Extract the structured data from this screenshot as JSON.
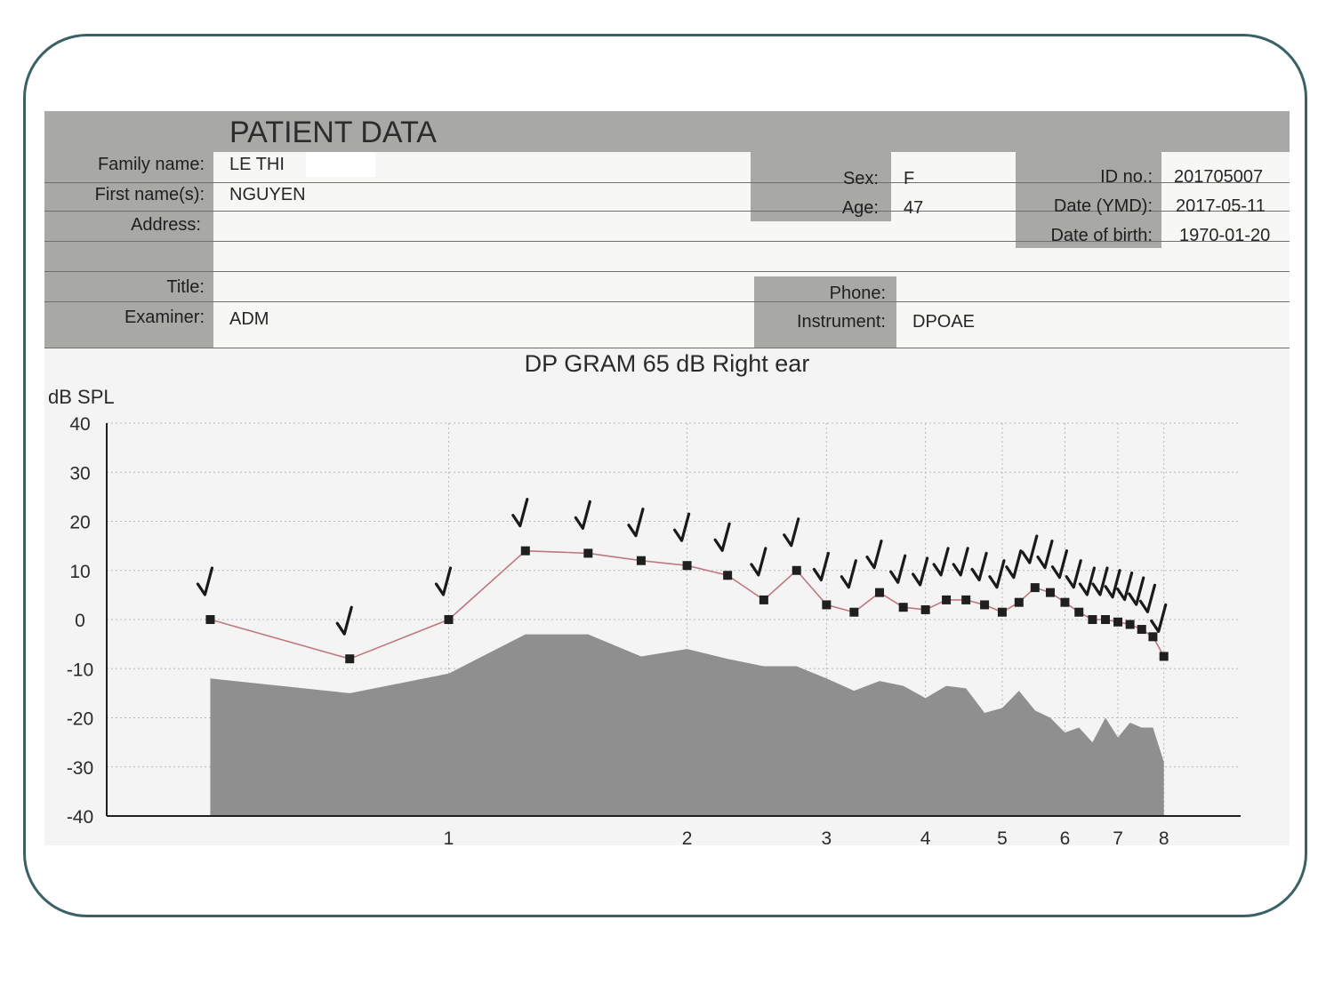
{
  "patient": {
    "section_title": "PATIENT DATA",
    "family_name_label": "Family name:",
    "family_name": "LE THI",
    "first_name_label": "First name(s):",
    "first_name": "NGUYEN",
    "address_label": "Address:",
    "address": "",
    "title_label": "Title:",
    "title": "",
    "examiner_label": "Examiner:",
    "examiner": "ADM",
    "sex_label": "Sex:",
    "sex": "F",
    "age_label": "Age:",
    "age": "47",
    "phone_label": "Phone:",
    "phone": "",
    "instrument_label": "Instrument:",
    "instrument": "DPOAE",
    "id_label": "ID no.:",
    "id_no": "201705007",
    "date_label": "Date (YMD):",
    "date": "2017-05-11",
    "dob_label": "Date of birth:",
    "dob": "1970-01-20"
  },
  "chart_data": {
    "type": "line",
    "title": "DP GRAM 65 dB Right ear",
    "ylabel": "dB SPL",
    "xlabel": "",
    "ylim": [
      -40,
      40
    ],
    "yticks": [
      "40",
      "30",
      "20",
      "10",
      "0",
      "-10",
      "-20",
      "-30",
      "-40"
    ],
    "xticks": [
      {
        "label": "1",
        "value": 1
      },
      {
        "label": "2",
        "value": 2
      },
      {
        "label": "3",
        "value": 3
      },
      {
        "label": "4",
        "value": 4
      },
      {
        "label": "5",
        "value": 5
      },
      {
        "label": "6",
        "value": 6
      },
      {
        "label": "7",
        "value": 7
      },
      {
        "label": "8",
        "value": 8
      }
    ],
    "xscale": "log",
    "xlim": [
      0.37,
      10
    ],
    "grid": true,
    "series": [
      {
        "type": "line",
        "color": "#c07880",
        "marker": "square",
        "check_marks": true,
        "x": [
          0.5,
          0.75,
          1.0,
          1.25,
          1.5,
          1.75,
          2.0,
          2.25,
          2.5,
          2.75,
          3.0,
          3.25,
          3.5,
          3.75,
          4.0,
          4.25,
          4.5,
          4.75,
          5.0,
          5.25,
          5.5,
          5.75,
          6.0,
          6.25,
          6.5,
          6.75,
          7.0,
          7.25,
          7.5,
          7.75,
          8.0
        ],
        "y": [
          0,
          -8,
          0,
          14,
          13.5,
          12,
          11,
          9,
          4,
          10,
          3,
          1.5,
          5.5,
          2.5,
          2,
          4,
          4,
          3,
          1.5,
          3.5,
          6.5,
          5.5,
          3.5,
          1.5,
          0,
          0,
          -0.5,
          -1,
          -2,
          -3.5,
          -7.5
        ]
      },
      {
        "type": "area",
        "color": "#8f8f8f",
        "x": [
          0.5,
          0.75,
          1.0,
          1.25,
          1.5,
          1.75,
          2.0,
          2.25,
          2.5,
          2.75,
          3.0,
          3.25,
          3.5,
          3.75,
          4.0,
          4.25,
          4.5,
          4.75,
          5.0,
          5.25,
          5.5,
          5.75,
          6.0,
          6.25,
          6.5,
          6.75,
          7.0,
          7.25,
          7.5,
          7.75,
          8.0
        ],
        "y": [
          -12,
          -15,
          -11,
          -3,
          -3,
          -7.5,
          -6,
          -8,
          -9.5,
          -9.5,
          -12,
          -14.5,
          -12.5,
          -13.5,
          -16,
          -13.5,
          -14,
          -19,
          -18,
          -14.5,
          -18.5,
          -20,
          -23,
          -22,
          -25,
          -20,
          -24,
          -21,
          -22,
          -22,
          -29
        ]
      }
    ]
  }
}
